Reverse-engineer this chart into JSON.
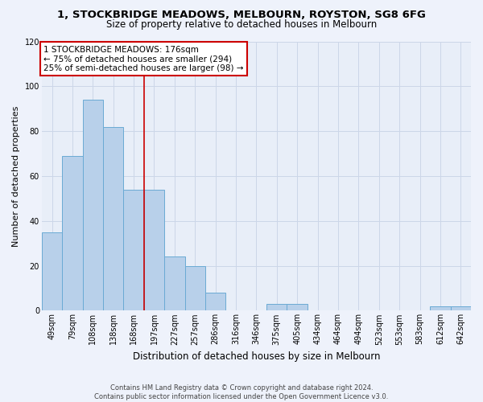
{
  "title": "1, STOCKBRIDGE MEADOWS, MELBOURN, ROYSTON, SG8 6FG",
  "subtitle": "Size of property relative to detached houses in Melbourn",
  "xlabel": "Distribution of detached houses by size in Melbourn",
  "ylabel": "Number of detached properties",
  "bar_labels": [
    "49sqm",
    "79sqm",
    "108sqm",
    "138sqm",
    "168sqm",
    "197sqm",
    "227sqm",
    "257sqm",
    "286sqm",
    "316sqm",
    "346sqm",
    "375sqm",
    "405sqm",
    "434sqm",
    "464sqm",
    "494sqm",
    "523sqm",
    "553sqm",
    "583sqm",
    "612sqm",
    "642sqm"
  ],
  "bar_values": [
    35,
    69,
    94,
    82,
    54,
    54,
    24,
    20,
    8,
    0,
    0,
    3,
    3,
    0,
    0,
    0,
    0,
    0,
    0,
    2,
    2
  ],
  "bar_color": "#b8d0ea",
  "bar_edge_color": "#6aaad4",
  "annotation_text_line1": "1 STOCKBRIDGE MEADOWS: 176sqm",
  "annotation_text_line2": "← 75% of detached houses are smaller (294)",
  "annotation_text_line3": "25% of semi-detached houses are larger (98) →",
  "annotation_box_facecolor": "#ffffff",
  "annotation_box_edgecolor": "#cc0000",
  "vline_color": "#cc0000",
  "grid_color": "#ccd6e8",
  "background_color": "#e8eef8",
  "fig_facecolor": "#eef2fb",
  "footer_line1": "Contains HM Land Registry data © Crown copyright and database right 2024.",
  "footer_line2": "Contains public sector information licensed under the Open Government Licence v3.0.",
  "ylim": [
    0,
    120
  ],
  "yticks": [
    0,
    20,
    40,
    60,
    80,
    100,
    120
  ],
  "vline_x": 4.5,
  "title_fontsize": 9.5,
  "subtitle_fontsize": 8.5,
  "xlabel_fontsize": 8.5,
  "ylabel_fontsize": 8,
  "tick_fontsize": 7,
  "annotation_fontsize": 7.5,
  "footer_fontsize": 6
}
